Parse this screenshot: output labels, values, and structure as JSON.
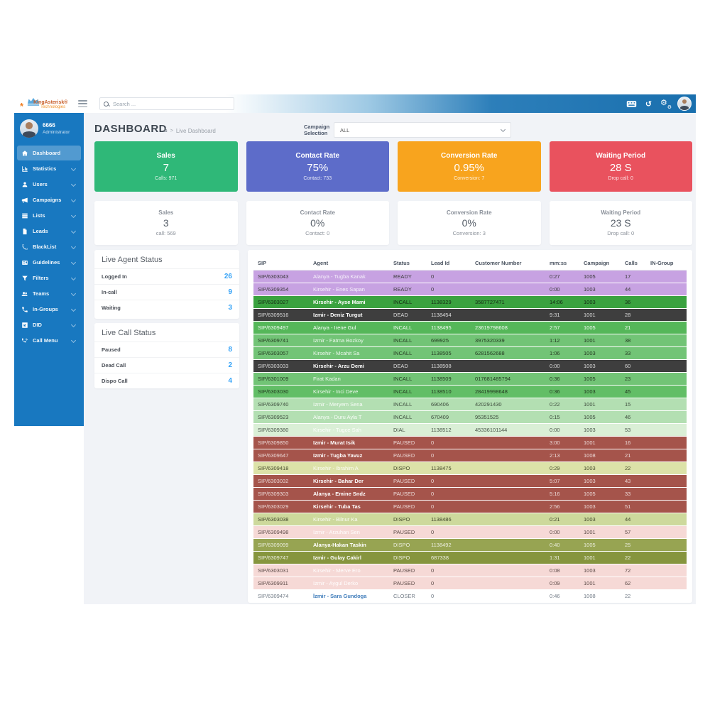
{
  "brand": {
    "line1": "KingAsterisk®",
    "line2": "Technologies"
  },
  "topbar": {
    "search_placeholder": "Search ..."
  },
  "sidebar": {
    "user_id": "6666",
    "user_role": "Administrator",
    "items": [
      {
        "label": "Dashboard",
        "icon": "home",
        "active": true,
        "chevron": false
      },
      {
        "label": "Statistics",
        "icon": "chart",
        "active": false,
        "chevron": true
      },
      {
        "label": "Users",
        "icon": "user",
        "active": false,
        "chevron": true
      },
      {
        "label": "Campaigns",
        "icon": "megaphone",
        "active": false,
        "chevron": true
      },
      {
        "label": "Lists",
        "icon": "list",
        "active": false,
        "chevron": true
      },
      {
        "label": "Leads",
        "icon": "file",
        "active": false,
        "chevron": true
      },
      {
        "label": "BlackList",
        "icon": "phone-slash",
        "active": false,
        "chevron": true
      },
      {
        "label": "Guidelines",
        "icon": "card",
        "active": false,
        "chevron": true
      },
      {
        "label": "Filters",
        "icon": "funnel",
        "active": false,
        "chevron": true
      },
      {
        "label": "Teams",
        "icon": "users",
        "active": false,
        "chevron": true
      },
      {
        "label": "In-Groups",
        "icon": "phone",
        "active": false,
        "chevron": true
      },
      {
        "label": "DID",
        "icon": "did",
        "active": false,
        "chevron": true
      },
      {
        "label": "Call Menu",
        "icon": "phone-wave",
        "active": false,
        "chevron": true
      }
    ]
  },
  "page": {
    "title": "DASHBOARD",
    "breadcrumb_separator": ">",
    "breadcrumb_current": "Live Dashboard",
    "campaign_label_line1": "Campaign",
    "campaign_label_line2": "Selection",
    "campaign_value": "ALL"
  },
  "stat_cards": [
    {
      "title": "Sales",
      "value": "7",
      "sub": "Calls: 971",
      "color": "#2fb878"
    },
    {
      "title": "Contact Rate",
      "value": "75%",
      "sub": "Contact: 733",
      "color": "#5d6cc9"
    },
    {
      "title": "Conversion Rate",
      "value": "0.95%",
      "sub": "Conversion: 7",
      "color": "#f8a41e"
    },
    {
      "title": "Waiting Period",
      "value": "28 S",
      "sub": "Drop call: 0",
      "color": "#e9525e"
    }
  ],
  "summary_cards": [
    {
      "title": "Sales",
      "value": "3",
      "sub": "call: 569"
    },
    {
      "title": "Contact Rate",
      "value": "0%",
      "sub": "Contact: 0"
    },
    {
      "title": "Conversion Rate",
      "value": "0%",
      "sub": "Conversion: 3"
    },
    {
      "title": "Waiting Period",
      "value": "23 S",
      "sub": "Drop call: 0"
    }
  ],
  "live_agent_status": {
    "title": "Live Agent Status",
    "rows": [
      {
        "label": "Logged In",
        "value": "26"
      },
      {
        "label": "In-call",
        "value": "9"
      },
      {
        "label": "Waiting",
        "value": "3"
      }
    ]
  },
  "live_call_status": {
    "title": "Live Call Status",
    "rows": [
      {
        "label": "Paused",
        "value": "8"
      },
      {
        "label": "Dead Call",
        "value": "2"
      },
      {
        "label": "Dispo Call",
        "value": "4"
      }
    ]
  },
  "colors": {
    "accent_value_blue": "#36a3f7",
    "sidebar_blue": "#1878c0"
  },
  "table": {
    "columns": [
      "SIP",
      "Agent",
      "Status",
      "Lead Id",
      "Customer Number",
      "mm:ss",
      "Campaign",
      "Calls",
      "IN-Group"
    ],
    "rows": [
      {
        "sip": "SIP/6303043",
        "agent": "Alanya - Tugba Kanak",
        "status": "READY",
        "lead": "0",
        "customer": "",
        "time": "0:27",
        "campaign": "1005",
        "calls": "17",
        "group": "",
        "bg": "#c7a2e2",
        "fg": "#3a3a3a",
        "agent_fg": "rgba(255,255,255,0.85)",
        "agent_bold": false
      },
      {
        "sip": "SIP/6309354",
        "agent": "Kirsehir - Enes Sapan",
        "status": "READY",
        "lead": "0",
        "customer": "",
        "time": "0:00",
        "campaign": "1003",
        "calls": "44",
        "group": "",
        "bg": "#c7a2e2",
        "fg": "#3a3a3a",
        "agent_fg": "rgba(255,255,255,0.85)",
        "agent_bold": false
      },
      {
        "sip": "SIP/6303027",
        "agent": "Kirsehir - Ayse Mami",
        "status": "INCALL",
        "lead": "1138329",
        "customer": "3587727471",
        "time": "14:06",
        "campaign": "1003",
        "calls": "36",
        "group": "",
        "bg": "#3aa23f",
        "fg": "#142813",
        "agent_fg": "#ffffff",
        "agent_bold": true
      },
      {
        "sip": "SIP/6309516",
        "agent": "Izmir - Deniz Turgut",
        "status": "DEAD",
        "lead": "1138454",
        "customer": "",
        "time": "9:31",
        "campaign": "1001",
        "calls": "28",
        "group": "",
        "bg": "#3e3e3e",
        "fg": "#dcdcdc",
        "agent_fg": "#ffffff",
        "agent_bold": true
      },
      {
        "sip": "SIP/6309497",
        "agent": "Alanya - Irene Gul",
        "status": "INCALL",
        "lead": "1138495",
        "customer": "23619798608",
        "time": "2:57",
        "campaign": "1005",
        "calls": "21",
        "group": "",
        "bg": "#55b759",
        "fg": "rgba(255,255,255,0.92)",
        "agent_fg": "#ffffff",
        "agent_bold": false
      },
      {
        "sip": "SIP/6309741",
        "agent": "Izmir - Fatma Bozkoy",
        "status": "INCALL",
        "lead": "699925",
        "customer": "3975320339",
        "time": "1:12",
        "campaign": "1001",
        "calls": "38",
        "group": "",
        "bg": "#72c476",
        "fg": "#253b22",
        "agent_fg": "rgba(255,255,255,0.88)",
        "agent_bold": false
      },
      {
        "sip": "SIP/6303057",
        "agent": "Kirsehir - Mcahit Sa",
        "status": "INCALL",
        "lead": "1138505",
        "customer": "6281562688",
        "time": "1:06",
        "campaign": "1003",
        "calls": "33",
        "group": "",
        "bg": "#72c476",
        "fg": "#253b22",
        "agent_fg": "rgba(255,255,255,0.88)",
        "agent_bold": false
      },
      {
        "sip": "SIP/6303033",
        "agent": "Kirsehir - Arzu Demi",
        "status": "DEAD",
        "lead": "1138508",
        "customer": "",
        "time": "0:00",
        "campaign": "1003",
        "calls": "60",
        "group": "",
        "bg": "#3e3e3e",
        "fg": "#dcdcdc",
        "agent_fg": "#ffffff",
        "agent_bold": true
      },
      {
        "sip": "SIP/6301009",
        "agent": "Firat Kadan",
        "status": "INCALL",
        "lead": "1138509",
        "customer": "017681485794",
        "time": "0:36",
        "campaign": "1005",
        "calls": "23",
        "group": "",
        "bg": "#72c476",
        "fg": "#253b22",
        "agent_fg": "rgba(255,255,255,0.88)",
        "agent_bold": false
      },
      {
        "sip": "SIP/6303030",
        "agent": "Kirsehir - Inci Deve",
        "status": "INCALL",
        "lead": "1138510",
        "customer": "28419998648",
        "time": "0:36",
        "campaign": "1003",
        "calls": "45",
        "group": "",
        "bg": "#62be66",
        "fg": "#233a20",
        "agent_fg": "rgba(255,255,255,0.88)",
        "agent_bold": false
      },
      {
        "sip": "SIP/6309740",
        "agent": "Izmir - Meryem Sena",
        "status": "INCALL",
        "lead": "690406",
        "customer": "420291430",
        "time": "0:22",
        "campaign": "1001",
        "calls": "15",
        "group": "",
        "bg": "#b3dfb2",
        "fg": "#3c4a3c",
        "agent_fg": "rgba(255,255,255,0.92)",
        "agent_bold": false
      },
      {
        "sip": "SIP/6309523",
        "agent": "Alanya - Duru Ayla T",
        "status": "INCALL",
        "lead": "670409",
        "customer": "95351525",
        "time": "0:15",
        "campaign": "1005",
        "calls": "46",
        "group": "",
        "bg": "#b3dfb2",
        "fg": "#3c4a3c",
        "agent_fg": "rgba(255,255,255,0.92)",
        "agent_bold": false
      },
      {
        "sip": "SIP/6309380",
        "agent": "Kirsehir - Tugce Sah",
        "status": "DIAL",
        "lead": "1138512",
        "customer": "45336101144",
        "time": "0:00",
        "campaign": "1003",
        "calls": "53",
        "group": "",
        "bg": "#daefd6",
        "fg": "#485548",
        "agent_fg": "rgba(255,255,255,0.95)",
        "agent_bold": false
      },
      {
        "sip": "SIP/6309850",
        "agent": "Izmir - Murat Isik",
        "status": "PAUSED",
        "lead": "0",
        "customer": "",
        "time": "3:00",
        "campaign": "1001",
        "calls": "16",
        "group": "",
        "bg": "#a5544b",
        "fg": "rgba(255,255,255,0.78)",
        "agent_fg": "#ffffff",
        "agent_bold": true
      },
      {
        "sip": "SIP/6309647",
        "agent": "Izmir - Tugba Yavuz",
        "status": "PAUSED",
        "lead": "0",
        "customer": "",
        "time": "2:13",
        "campaign": "1008",
        "calls": "21",
        "group": "",
        "bg": "#a5544b",
        "fg": "rgba(255,255,255,0.78)",
        "agent_fg": "#ffffff",
        "agent_bold": true
      },
      {
        "sip": "SIP/6309418",
        "agent": "Kirsehir - Ibrahim A",
        "status": "DISPO",
        "lead": "1138475",
        "customer": "",
        "time": "0:29",
        "campaign": "1003",
        "calls": "22",
        "group": "",
        "bg": "#dce2a8",
        "fg": "#454a2c",
        "agent_fg": "rgba(255,255,255,0.9)",
        "agent_bold": false
      },
      {
        "sip": "SIP/6303032",
        "agent": "Kirsehir - Bahar Der",
        "status": "PAUSED",
        "lead": "0",
        "customer": "",
        "time": "5:07",
        "campaign": "1003",
        "calls": "43",
        "group": "",
        "bg": "#a5544b",
        "fg": "rgba(255,255,255,0.78)",
        "agent_fg": "#ffffff",
        "agent_bold": true
      },
      {
        "sip": "SIP/6309303",
        "agent": "Alanya - Emine Sndz",
        "status": "PAUSED",
        "lead": "0",
        "customer": "",
        "time": "5:16",
        "campaign": "1005",
        "calls": "33",
        "group": "",
        "bg": "#a5544b",
        "fg": "rgba(255,255,255,0.78)",
        "agent_fg": "#ffffff",
        "agent_bold": true
      },
      {
        "sip": "SIP/6303029",
        "agent": "Kirsehir - Tuba Tas",
        "status": "PAUSED",
        "lead": "0",
        "customer": "",
        "time": "2:56",
        "campaign": "1003",
        "calls": "51",
        "group": "",
        "bg": "#a5544b",
        "fg": "rgba(255,255,255,0.78)",
        "agent_fg": "#ffffff",
        "agent_bold": true
      },
      {
        "sip": "SIP/6303038",
        "agent": "Kirsehir - Bilnur Ka",
        "status": "DISPO",
        "lead": "1138486",
        "customer": "",
        "time": "0:21",
        "campaign": "1003",
        "calls": "44",
        "group": "",
        "bg": "#cdd99c",
        "fg": "#40462a",
        "agent_fg": "rgba(255,255,255,0.9)",
        "agent_bold": false
      },
      {
        "sip": "SIP/6309498",
        "agent": "Izmir - Arzuhan Sen",
        "status": "PAUSED",
        "lead": "0",
        "customer": "",
        "time": "0:00",
        "campaign": "1001",
        "calls": "57",
        "group": "",
        "bg": "#f6d9d6",
        "fg": "#5c4a47",
        "agent_fg": "rgba(255,255,255,0.95)",
        "agent_bold": false
      },
      {
        "sip": "SIP/6309099",
        "agent": "Alanya-Hakan Taskin",
        "status": "DISPO",
        "lead": "1138492",
        "customer": "",
        "time": "0:40",
        "campaign": "1005",
        "calls": "25",
        "group": "",
        "bg": "#97a452",
        "fg": "rgba(255,255,255,0.8)",
        "agent_fg": "#ffffff",
        "agent_bold": true
      },
      {
        "sip": "SIP/6309747",
        "agent": "Izmir - Gulay Cakirl",
        "status": "DISPO",
        "lead": "687338",
        "customer": "",
        "time": "1:31",
        "campaign": "1001",
        "calls": "22",
        "group": "",
        "bg": "#86953e",
        "fg": "rgba(255,255,255,0.85)",
        "agent_fg": "#ffffff",
        "agent_bold": true
      },
      {
        "sip": "SIP/6303031",
        "agent": "Kirsehir - Merve Ero",
        "status": "PAUSED",
        "lead": "0",
        "customer": "",
        "time": "0:08",
        "campaign": "1003",
        "calls": "72",
        "group": "",
        "bg": "#f6d9d6",
        "fg": "#5c4a47",
        "agent_fg": "rgba(255,255,255,0.95)",
        "agent_bold": false
      },
      {
        "sip": "SIP/6309911",
        "agent": "Izmir - Aygul Derko",
        "status": "PAUSED",
        "lead": "0",
        "customer": "",
        "time": "0:09",
        "campaign": "1001",
        "calls": "62",
        "group": "",
        "bg": "#f6d9d6",
        "fg": "#5c4a47",
        "agent_fg": "rgba(255,255,255,0.95)",
        "agent_bold": false
      },
      {
        "sip": "SIP/6309474",
        "agent": "İzmir - Sara Gundoga",
        "status": "CLOSER",
        "lead": "0",
        "customer": "",
        "time": "0:46",
        "campaign": "1008",
        "calls": "22",
        "group": "",
        "bg": "#ffffff",
        "fg": "#707a85",
        "agent_fg": "#3f7cba",
        "agent_bold": true
      }
    ]
  }
}
